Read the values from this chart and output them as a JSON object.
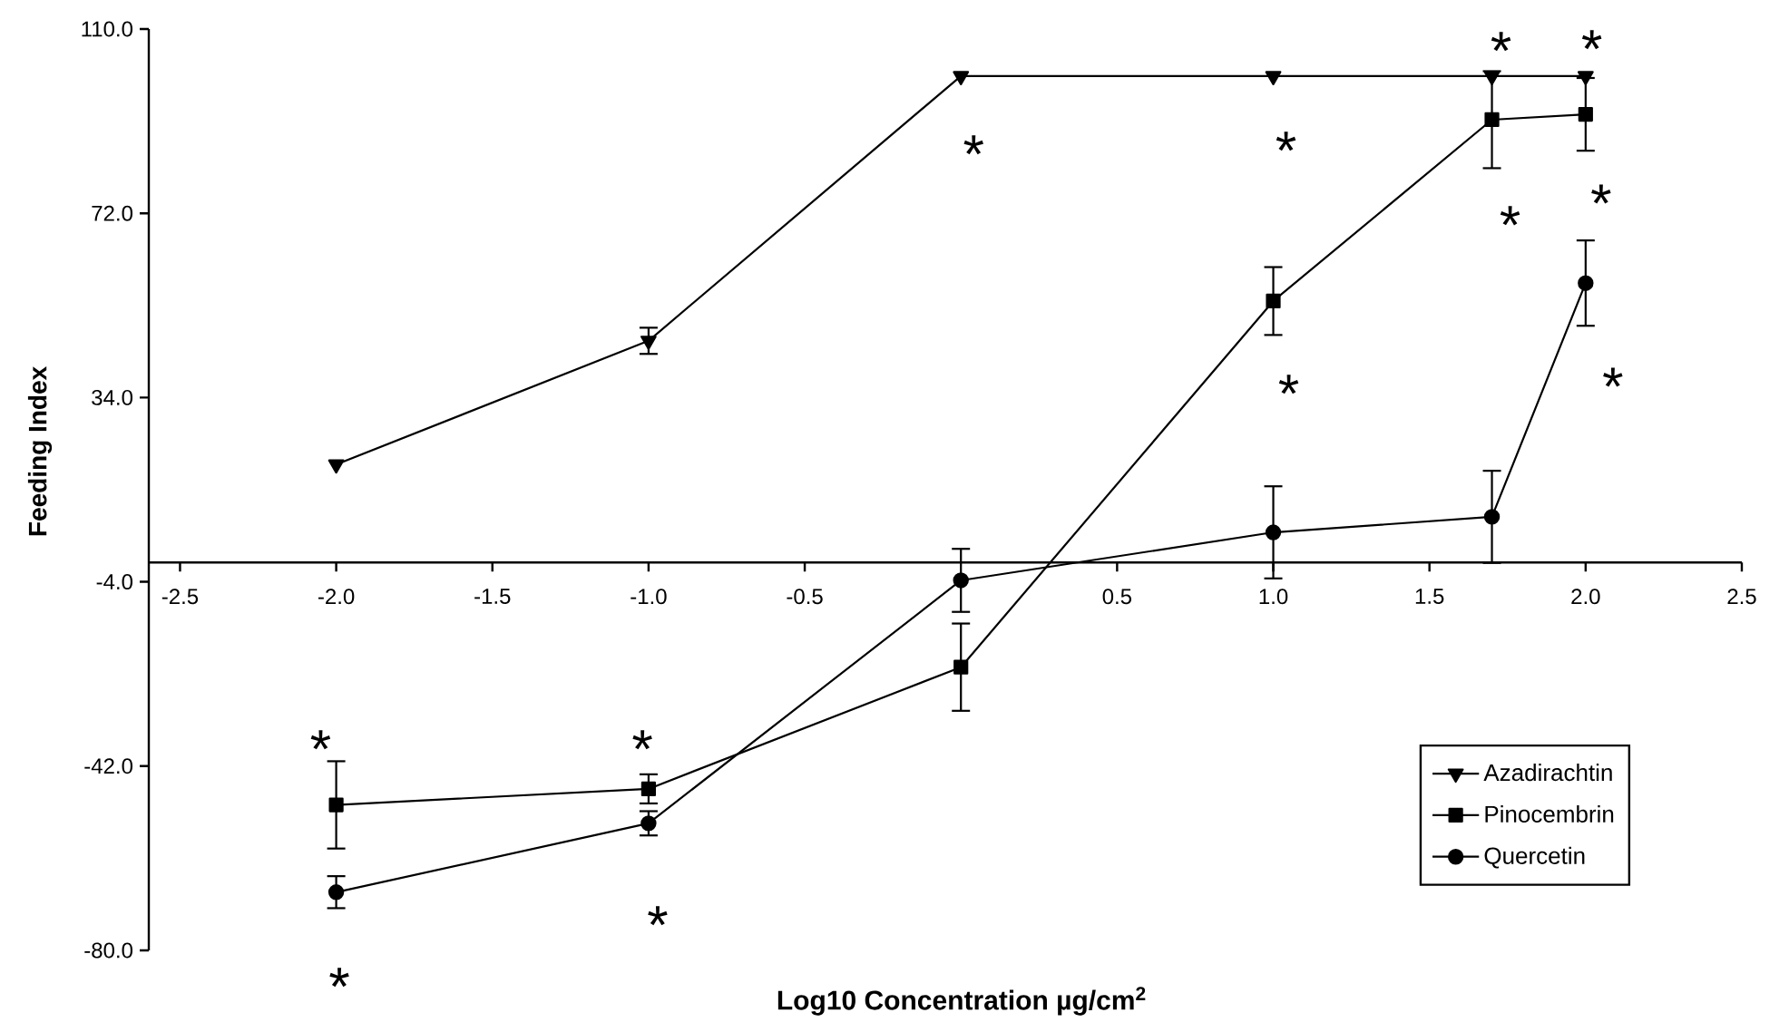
{
  "chart_data": {
    "type": "line",
    "xlabel": "Log10 Concentration µg/cm$^{2}$",
    "ylabel": "Feeding Index",
    "xlim": [
      -2.6,
      2.5
    ],
    "ylim": [
      -80,
      110
    ],
    "xticks": [
      {
        "value": -2.5,
        "label": "-2.5"
      },
      {
        "value": -2.0,
        "label": "-2.0"
      },
      {
        "value": -1.5,
        "label": "-1.5"
      },
      {
        "value": -1.0,
        "label": "-1.0"
      },
      {
        "value": -0.5,
        "label": "-0.5"
      },
      {
        "value": 0.5,
        "label": "0.5"
      },
      {
        "value": 1.0,
        "label": "1.0"
      },
      {
        "value": 1.5,
        "label": "1.5"
      },
      {
        "value": 2.0,
        "label": "2.0"
      },
      {
        "value": 2.5,
        "label": "2.5"
      }
    ],
    "yticks": [
      {
        "value": 110,
        "label": "110.0"
      },
      {
        "value": 72,
        "label": "72.0"
      },
      {
        "value": 34,
        "label": "34.0"
      },
      {
        "value": -4,
        "label": "-4.0"
      },
      {
        "value": -42,
        "label": "-42.0"
      },
      {
        "value": -80,
        "label": "-80.0"
      }
    ],
    "x": [
      -2.0,
      -1.0,
      0.0,
      1.0,
      1.7,
      2.0
    ],
    "series": [
      {
        "name": "Azadirachtin",
        "color": "#000000",
        "marker": "triangle",
        "values": [
          20.2,
          45.7,
          100.3,
          100.3,
          100.3,
          100.3
        ],
        "errors": [
          null,
          2.7,
          null,
          null,
          null,
          null
        ]
      },
      {
        "name": "Pinocembrin",
        "color": "#000000",
        "marker": "square",
        "values": [
          -50,
          -46.7,
          -21.6,
          53.9,
          91.3,
          92.4
        ],
        "errors": [
          9,
          3,
          9,
          7,
          10,
          7.5
        ]
      },
      {
        "name": "Quercetin",
        "color": "#000000",
        "marker": "circle",
        "values": [
          -68,
          -53.8,
          -3.7,
          6.2,
          9.4,
          57.6
        ],
        "errors": [
          3.3,
          2.5,
          6.5,
          9.5,
          9.5,
          8.8
        ]
      }
    ],
    "legend": "bottom right",
    "grid": false,
    "line_style": "solid",
    "annotations": [
      {
        "text": "*",
        "x": -2.0,
        "y": -50
      },
      {
        "text": "*",
        "x": -1.0,
        "y": -46.7
      },
      {
        "text": "*",
        "x": -2.0,
        "y": -68
      },
      {
        "text": "*",
        "x": -1.0,
        "y": -53.8
      },
      {
        "text": "*",
        "x": 0.0,
        "y": 100.3
      },
      {
        "text": "*",
        "x": 1.0,
        "y": 100.3
      },
      {
        "text": "*",
        "x": 1.7,
        "y": 100.3
      },
      {
        "text": "*",
        "x": 2.0,
        "y": 100.3
      },
      {
        "text": "*",
        "x": 1.7,
        "y": 91.3
      },
      {
        "text": "*",
        "x": 2.0,
        "y": 92.4
      },
      {
        "text": "*",
        "x": 1.0,
        "y": 53.9
      },
      {
        "text": "*",
        "x": 2.0,
        "y": 57.6
      }
    ]
  }
}
